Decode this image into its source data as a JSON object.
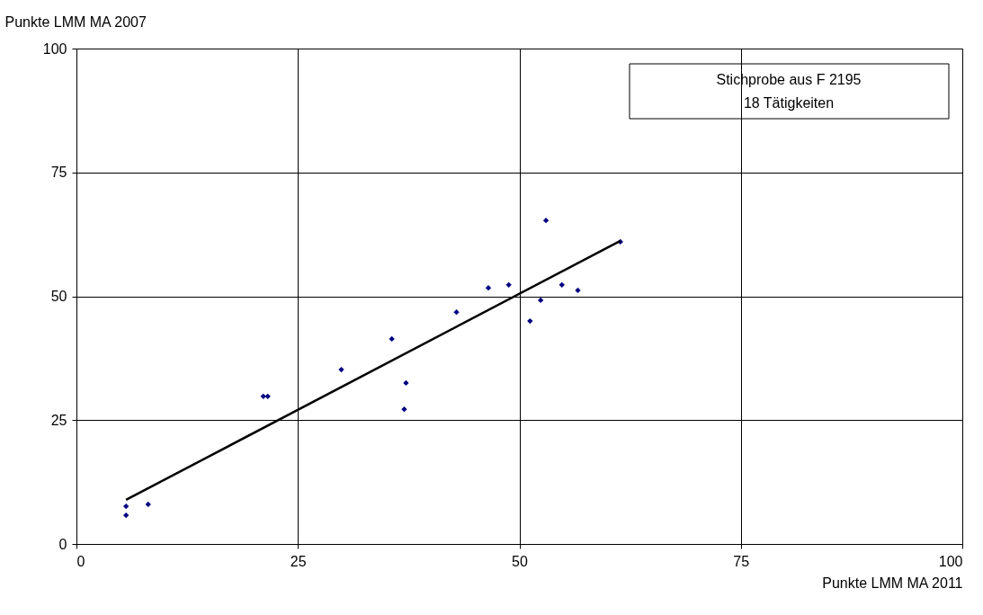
{
  "chart_data": {
    "type": "scatter",
    "xlabel": "Punkte LMM MA 2011",
    "ylabel": "Punkte LMM MA 2007",
    "annotations": [
      "Stichprobe aus F 2195",
      "18 Tätigkeiten"
    ],
    "xlim": [
      0,
      100
    ],
    "ylim": [
      0,
      100
    ],
    "xticks": [
      0,
      25,
      50,
      75,
      100
    ],
    "yticks": [
      0,
      25,
      50,
      75,
      100
    ],
    "grid": true,
    "series": [
      {
        "marker": "diamond",
        "color": "#000080",
        "x": [
          5.6,
          5.6,
          8.1,
          21.1,
          21.6,
          29.9,
          35.6,
          37.2,
          37.0,
          42.9,
          46.5,
          48.8,
          51.2,
          52.4,
          53.0,
          54.8,
          56.6,
          61.4
        ],
        "values": [
          7.6,
          5.8,
          8.0,
          29.8,
          29.8,
          35.2,
          41.4,
          32.5,
          27.2,
          46.8,
          51.7,
          52.3,
          45.0,
          49.2,
          65.3,
          52.3,
          51.2,
          61.0
        ]
      },
      {
        "type": "line",
        "color": "#000000",
        "line_style": "solid",
        "x": [
          5.6,
          61.4
        ],
        "values": [
          8.9,
          61.2
        ]
      }
    ]
  }
}
